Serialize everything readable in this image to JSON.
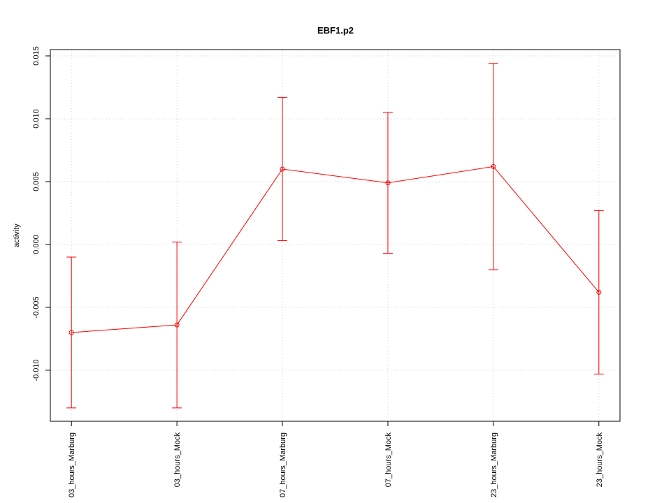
{
  "chart_data": {
    "type": "line",
    "title": "EBF1.p2",
    "y_label": "activity",
    "categories": [
      "03_hours_Marburg",
      "03_hours_Mock",
      "07_hours_Marburg",
      "07_hours_Mock",
      "23_hours_Marburg",
      "23_hours_Mock"
    ],
    "series": [
      {
        "color": "#ff0000",
        "values": [
          -0.007,
          -0.0064,
          0.006,
          0.0049,
          0.0062,
          -0.0038
        ],
        "errors": [
          0.006,
          0.0066,
          0.0057,
          0.0056,
          0.0082,
          0.0065
        ]
      }
    ],
    "ylim": [
      -0.01406,
      0.0155
    ],
    "yticks": [
      {
        "value": -0.01,
        "label": "-0.010"
      },
      -0.005,
      {
        "value": 0,
        "label": "0.000"
      },
      0.005,
      {
        "value": 0.01,
        "label": "0.010"
      },
      0.015
    ],
    "grid": true
  }
}
